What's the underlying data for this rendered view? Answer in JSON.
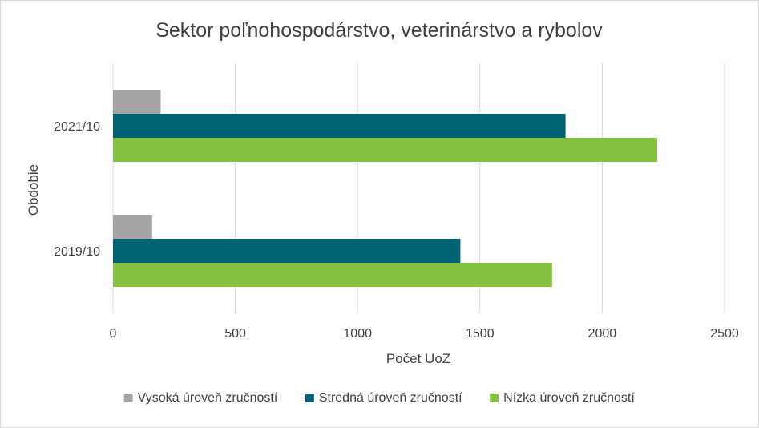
{
  "chart_data": {
    "type": "bar",
    "orientation": "horizontal",
    "title": "Sektor poľnohospodárstvo, veterinárstvo a rybolov",
    "xlabel": "Počet UoZ",
    "ylabel": "Obdobie",
    "categories": [
      "2019/10",
      "2021/10"
    ],
    "series": [
      {
        "name": "Vysoká úroveň zručností",
        "color": "#a5a5a5",
        "values": [
          160,
          195
        ]
      },
      {
        "name": "Stredná úroveň zručností",
        "color": "#006373",
        "values": [
          1420,
          1850
        ]
      },
      {
        "name": "Nízka úroveň zručností",
        "color": "#84c13f",
        "values": [
          1795,
          2225
        ]
      }
    ],
    "xlim": [
      0,
      2500
    ],
    "xticks": [
      0,
      500,
      1000,
      1500,
      2000,
      2500
    ],
    "grid": true,
    "legend_position": "bottom"
  }
}
